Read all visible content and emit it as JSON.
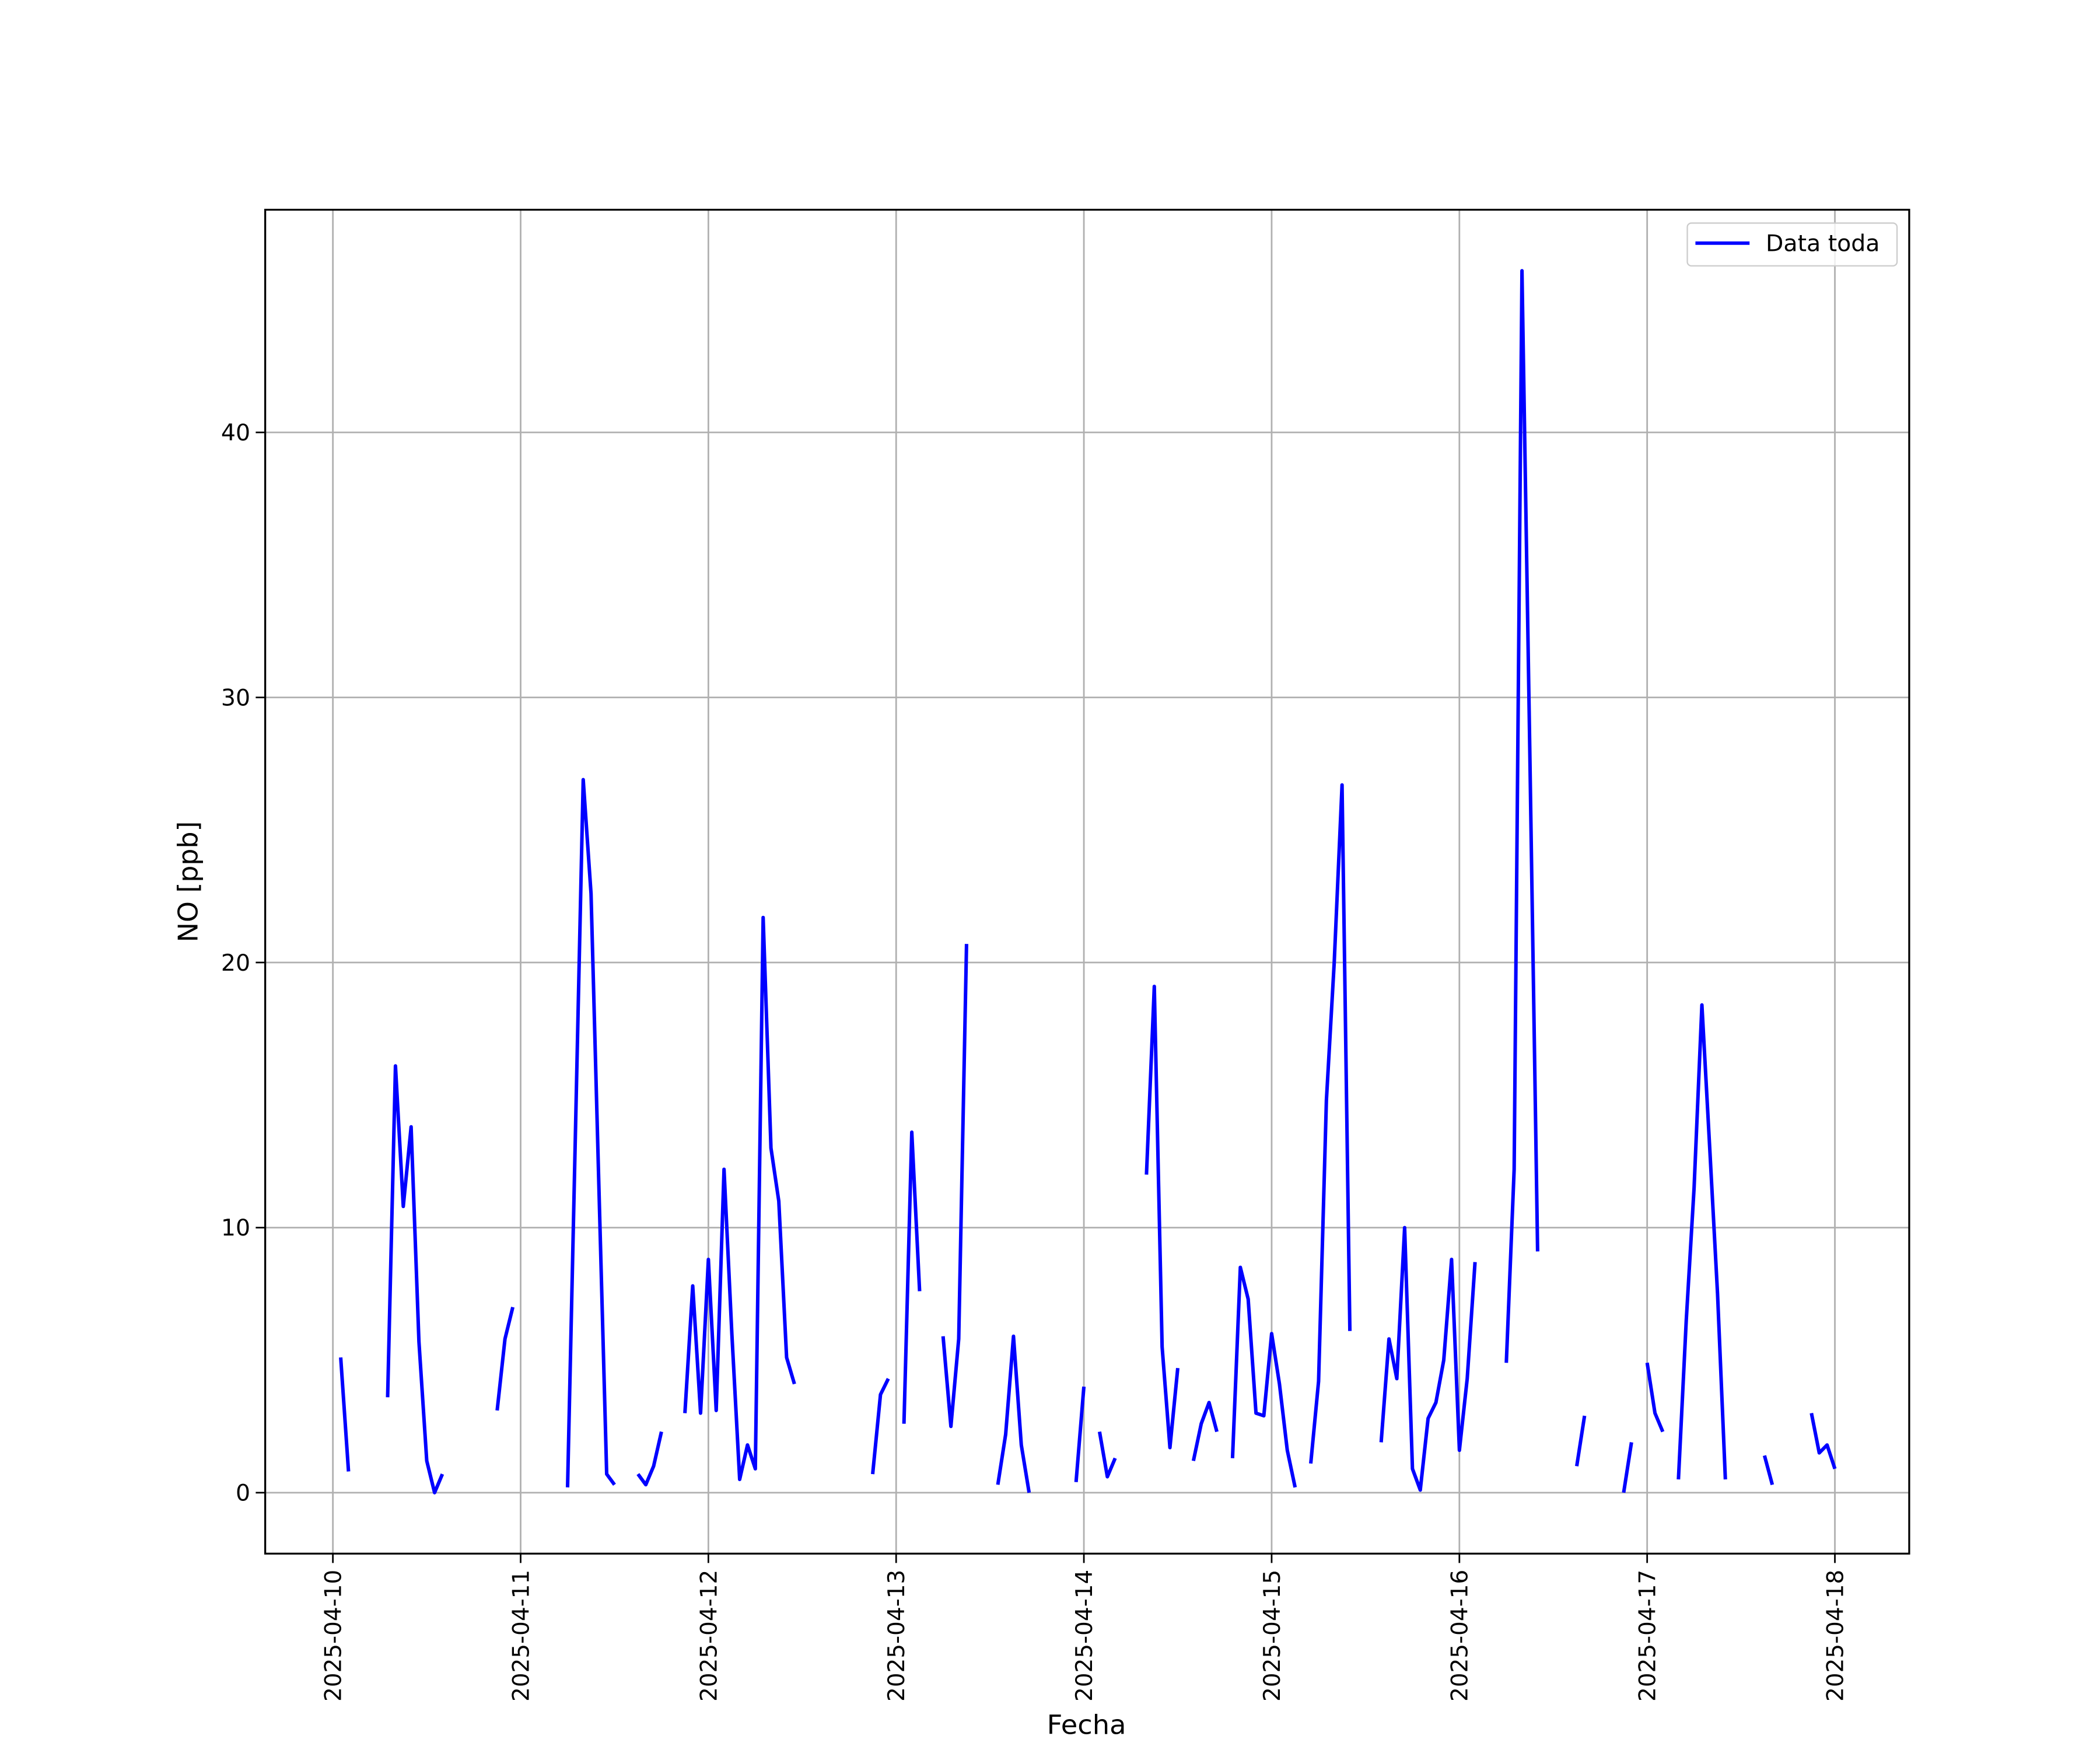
{
  "chart_data": {
    "type": "line",
    "xlabel": "Fecha",
    "ylabel": "NO [ppb]",
    "x": [
      "2025-04-10T01:00",
      "2025-04-10T02:00",
      "2025-04-10T03:00",
      "2025-04-10T07:00",
      "2025-04-10T08:00",
      "2025-04-10T09:00",
      "2025-04-10T10:00",
      "2025-04-10T11:00",
      "2025-04-10T12:00",
      "2025-04-10T13:00",
      "2025-04-10T14:00",
      "2025-04-10T15:00",
      "2025-04-10T21:00",
      "2025-04-10T22:00",
      "2025-04-10T23:00",
      "2025-04-11T00:00",
      "2025-04-11T06:00",
      "2025-04-11T07:00",
      "2025-04-11T08:00",
      "2025-04-11T09:00",
      "2025-04-11T10:00",
      "2025-04-11T11:00",
      "2025-04-11T12:00",
      "2025-04-11T13:00",
      "2025-04-11T15:00",
      "2025-04-11T16:00",
      "2025-04-11T17:00",
      "2025-04-11T18:00",
      "2025-04-11T19:00",
      "2025-04-11T21:00",
      "2025-04-11T22:00",
      "2025-04-11T23:00",
      "2025-04-12T00:00",
      "2025-04-12T01:00",
      "2025-04-12T02:00",
      "2025-04-12T03:00",
      "2025-04-12T04:00",
      "2025-04-12T05:00",
      "2025-04-12T06:00",
      "2025-04-12T07:00",
      "2025-04-12T08:00",
      "2025-04-12T09:00",
      "2025-04-12T10:00",
      "2025-04-12T11:00",
      "2025-04-12T12:00",
      "2025-04-12T21:00",
      "2025-04-12T22:00",
      "2025-04-12T23:00",
      "2025-04-13T00:00",
      "2025-04-13T01:00",
      "2025-04-13T02:00",
      "2025-04-13T03:00",
      "2025-04-13T04:00",
      "2025-04-13T06:00",
      "2025-04-13T07:00",
      "2025-04-13T08:00",
      "2025-04-13T09:00",
      "2025-04-13T10:00",
      "2025-04-13T13:00",
      "2025-04-13T14:00",
      "2025-04-13T15:00",
      "2025-04-13T16:00",
      "2025-04-13T17:00",
      "2025-04-13T18:00",
      "2025-04-13T23:00",
      "2025-04-14T00:00",
      "2025-04-14T01:00",
      "2025-04-14T02:00",
      "2025-04-14T03:00",
      "2025-04-14T04:00",
      "2025-04-14T05:00",
      "2025-04-14T08:00",
      "2025-04-14T09:00",
      "2025-04-14T10:00",
      "2025-04-14T11:00",
      "2025-04-14T12:00",
      "2025-04-14T13:00",
      "2025-04-14T14:00",
      "2025-04-14T15:00",
      "2025-04-14T16:00",
      "2025-04-14T17:00",
      "2025-04-14T18:00",
      "2025-04-14T19:00",
      "2025-04-14T20:00",
      "2025-04-14T21:00",
      "2025-04-14T22:00",
      "2025-04-14T23:00",
      "2025-04-15T00:00",
      "2025-04-15T01:00",
      "2025-04-15T02:00",
      "2025-04-15T03:00",
      "2025-04-15T04:00",
      "2025-04-15T05:00",
      "2025-04-15T06:00",
      "2025-04-15T07:00",
      "2025-04-15T08:00",
      "2025-04-15T09:00",
      "2025-04-15T10:00",
      "2025-04-15T11:00",
      "2025-04-15T14:00",
      "2025-04-15T15:00",
      "2025-04-15T16:00",
      "2025-04-15T17:00",
      "2025-04-15T18:00",
      "2025-04-15T19:00",
      "2025-04-15T20:00",
      "2025-04-15T21:00",
      "2025-04-15T22:00",
      "2025-04-15T23:00",
      "2025-04-16T00:00",
      "2025-04-16T01:00",
      "2025-04-16T02:00",
      "2025-04-16T03:00",
      "2025-04-16T06:00",
      "2025-04-16T07:00",
      "2025-04-16T08:00",
      "2025-04-16T09:00",
      "2025-04-16T10:00",
      "2025-04-16T11:00",
      "2025-04-16T15:00",
      "2025-04-16T16:00",
      "2025-04-16T17:00",
      "2025-04-16T21:00",
      "2025-04-16T22:00",
      "2025-04-16T23:00",
      "2025-04-17T00:00",
      "2025-04-17T01:00",
      "2025-04-17T02:00",
      "2025-04-17T03:00",
      "2025-04-17T04:00",
      "2025-04-17T05:00",
      "2025-04-17T06:00",
      "2025-04-17T07:00",
      "2025-04-17T08:00",
      "2025-04-17T09:00",
      "2025-04-17T10:00",
      "2025-04-17T11:00",
      "2025-04-17T15:00",
      "2025-04-17T16:00",
      "2025-04-17T17:00",
      "2025-04-17T21:00",
      "2025-04-17T22:00",
      "2025-04-17T23:00",
      "2025-04-18T00:00"
    ],
    "series": [
      {
        "name": "Data toda",
        "color": "#0000ff",
        "values": [
          5.1,
          0.8,
          null,
          3.6,
          16.1,
          10.8,
          13.8,
          5.7,
          1.2,
          0.0,
          0.7,
          null,
          3.1,
          5.8,
          7.0,
          null,
          0.2,
          13.5,
          26.9,
          22.6,
          11.6,
          0.7,
          0.3,
          null,
          0.7,
          0.3,
          1.0,
          2.3,
          null,
          3.0,
          7.8,
          3.0,
          8.8,
          3.1,
          12.2,
          6.0,
          0.5,
          1.8,
          0.9,
          21.7,
          13.0,
          11.0,
          5.1,
          4.1,
          null,
          0.7,
          3.7,
          4.3,
          null,
          2.6,
          13.6,
          7.6,
          null,
          5.9,
          2.5,
          5.8,
          20.7,
          null,
          0.3,
          2.2,
          5.9,
          1.8,
          0.0,
          null,
          0.4,
          4.0,
          null,
          2.3,
          0.6,
          1.3,
          null,
          12.0,
          19.1,
          5.5,
          1.7,
          4.7,
          null,
          1.2,
          2.6,
          3.4,
          2.3,
          null,
          1.3,
          8.5,
          7.3,
          3.0,
          2.9,
          6.0,
          4.1,
          1.6,
          0.2,
          null,
          1.1,
          4.2,
          14.8,
          20.0,
          26.7,
          6.1,
          null,
          1.9,
          5.8,
          4.3,
          10.0,
          0.9,
          0.1,
          2.8,
          3.4,
          5.0,
          8.8,
          1.6,
          4.3,
          8.7,
          null,
          4.9,
          12.2,
          46.1,
          28.0,
          9.1,
          null,
          1.0,
          2.9,
          null,
          0.0,
          1.9,
          null,
          4.9,
          3.0,
          2.3,
          null,
          0.5,
          6.5,
          11.5,
          18.4,
          13.0,
          7.5,
          0.5,
          null,
          1.4,
          0.3,
          null,
          3.0,
          1.5,
          1.8,
          0.9
        ]
      }
    ],
    "xlim": [
      "2025-04-09T15:21",
      "2025-04-18T09:30"
    ],
    "xticks": [
      "2025-04-10",
      "2025-04-11",
      "2025-04-12",
      "2025-04-13",
      "2025-04-14",
      "2025-04-15",
      "2025-04-16",
      "2025-04-17",
      "2025-04-18"
    ],
    "ylim": [
      -2.3,
      48.4
    ],
    "yticks": [
      0,
      10,
      20,
      30,
      40
    ],
    "grid": true,
    "legend": "upper right"
  }
}
